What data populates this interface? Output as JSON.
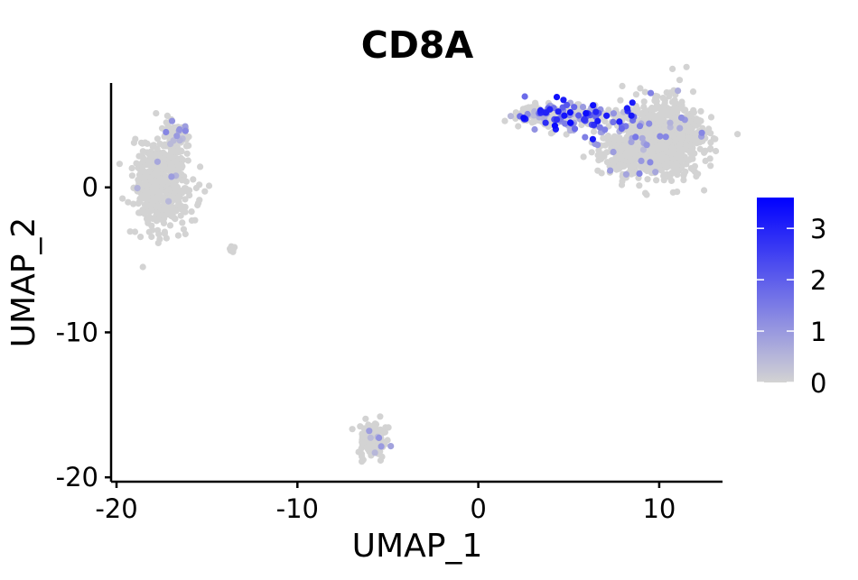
{
  "chart_data": {
    "type": "scatter",
    "title": "CD8A",
    "xlabel": "UMAP_1",
    "ylabel": "UMAP_2",
    "xlim": [
      -20.3,
      13.5
    ],
    "ylim": [
      -20.3,
      7.2
    ],
    "x_ticks": [
      -20,
      -10,
      0,
      10
    ],
    "y_ticks": [
      0,
      -10,
      -20
    ],
    "x_tick_labels": [
      "-20",
      "-10",
      "0",
      "10"
    ],
    "y_tick_labels": [
      "0",
      "-10",
      "-20"
    ],
    "grid": false,
    "legend": {
      "position": "right",
      "type": "colorbar",
      "range": [
        0,
        3.6
      ],
      "ticks": [
        0,
        1,
        2,
        3
      ],
      "tick_labels": [
        "0",
        "1",
        "2",
        "3"
      ],
      "low_color": "#d3d3d3",
      "high_color": "#0000ff"
    },
    "clusters": [
      {
        "name": "",
        "center": [
          -17.5,
          0.3
        ],
        "spread": [
          0.75,
          1.6
        ],
        "n": 500,
        "expression_fraction": 0.02,
        "max_expression": 1.2
      },
      {
        "name": "",
        "center": [
          -16.7,
          3.4
        ],
        "spread": [
          0.35,
          0.55
        ],
        "n": 80,
        "expression_fraction": 0.06,
        "max_expression": 1.4
      },
      {
        "name": "",
        "center": [
          -13.6,
          -4.3
        ],
        "spread": [
          0.1,
          0.12
        ],
        "n": 8,
        "expression_fraction": 0.0,
        "max_expression": 0.0
      },
      {
        "name": "",
        "center": [
          -5.8,
          -17.4
        ],
        "spread": [
          0.4,
          0.65
        ],
        "n": 160,
        "expression_fraction": 0.05,
        "max_expression": 1.3
      },
      {
        "name": "",
        "center": [
          10.2,
          3.4
        ],
        "spread": [
          1.1,
          1.25
        ],
        "n": 900,
        "expression_fraction": 0.03,
        "max_expression": 1.5
      },
      {
        "name": "",
        "center": [
          8.2,
          2.2
        ],
        "spread": [
          0.9,
          0.7
        ],
        "n": 150,
        "expression_fraction": 0.12,
        "max_expression": 1.6
      },
      {
        "name": "",
        "center": [
          3.5,
          5.0
        ],
        "spread": [
          0.8,
          0.35
        ],
        "n": 150,
        "expression_fraction": 0.12,
        "max_expression": 1.8
      },
      {
        "name": "",
        "center": [
          5.8,
          4.8
        ],
        "spread": [
          1.3,
          0.55
        ],
        "n": 140,
        "expression_fraction": 0.6,
        "max_expression": 3.5
      }
    ]
  }
}
